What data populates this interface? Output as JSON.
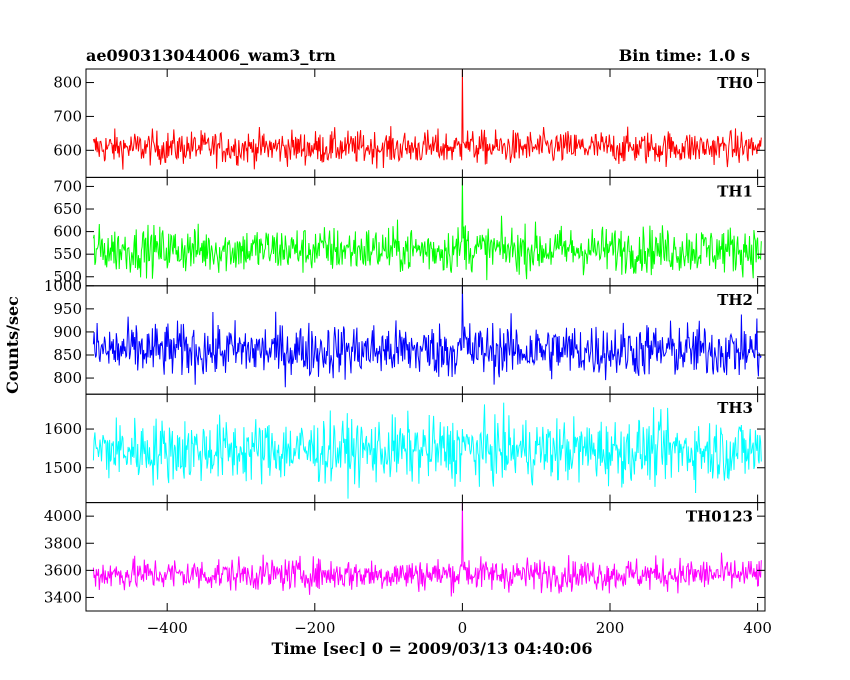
{
  "header": {
    "title": "ae090313044006_wam3_trn",
    "bin_time": "Bin time: 1.0 s"
  },
  "axes": {
    "xlabel": "Time [sec] 0 = 2009/03/13 04:40:06",
    "ylabel": "Counts/sec"
  },
  "chart_data": {
    "type": "line",
    "x_range": [
      -510,
      410
    ],
    "x_ticks": [
      -400,
      -200,
      0,
      200,
      400
    ],
    "bin_seconds": 1.0,
    "panels": [
      {
        "name": "TH0",
        "color": "#ff0000",
        "ylim": [
          520,
          840
        ],
        "yticks": [
          600,
          700,
          800
        ],
        "baseline": 608,
        "noise": 25,
        "spike_peak": 840
      },
      {
        "name": "TH1",
        "color": "#00ff00",
        "ylim": [
          480,
          720
        ],
        "yticks": [
          500,
          550,
          600,
          650,
          700
        ],
        "baseline": 560,
        "noise": 26,
        "spike_peak": 720
      },
      {
        "name": "TH2",
        "color": "#0000ff",
        "ylim": [
          765,
          1000
        ],
        "yticks": [
          800,
          850,
          900,
          950,
          1000
        ],
        "baseline": 860,
        "noise": 30,
        "spike_peak": 1000
      },
      {
        "name": "TH3",
        "color": "#00ffff",
        "ylim": [
          1410,
          1690
        ],
        "yticks": [
          1500,
          1600
        ],
        "baseline": 1545,
        "noise": 42,
        "spike_peak": 1600
      },
      {
        "name": "TH0123",
        "color": "#ff00ff",
        "ylim": [
          3300,
          4100
        ],
        "yticks": [
          3400,
          3600,
          3800,
          4000
        ],
        "baseline": 3570,
        "noise": 60,
        "spike_peak": 4100
      }
    ]
  }
}
